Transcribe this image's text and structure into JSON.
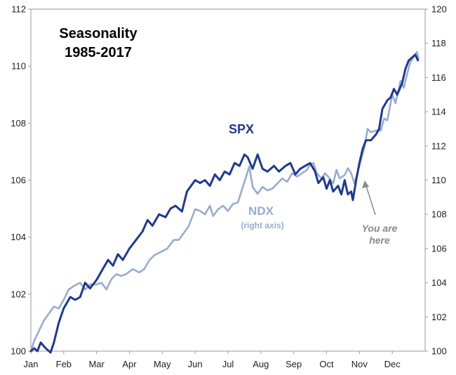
{
  "chart_data": {
    "type": "line",
    "title_lines": [
      "Seasonality",
      "1985-2017"
    ],
    "x_labels": [
      "Jan",
      "Feb",
      "Mar",
      "Apr",
      "May",
      "Jun",
      "Jul",
      "Aug",
      "Sep",
      "Oct",
      "Nov",
      "Dec"
    ],
    "left_axis": {
      "min": 100,
      "max": 112,
      "ticks": [
        "100",
        "102",
        "104",
        "106",
        "108",
        "110",
        "112"
      ]
    },
    "right_axis": {
      "min": 100,
      "max": 120,
      "ticks": [
        "100",
        "102",
        "104",
        "106",
        "108",
        "110",
        "112",
        "114",
        "116",
        "118",
        "120"
      ]
    },
    "series": [
      {
        "name": "SPX",
        "axis": "left",
        "color": "#1f3a8a",
        "label": "SPX",
        "points": [
          [
            0,
            100.0
          ],
          [
            0.1,
            100.1
          ],
          [
            0.2,
            100.0
          ],
          [
            0.3,
            100.3
          ],
          [
            0.45,
            100.1
          ],
          [
            0.6,
            99.95
          ],
          [
            0.7,
            100.3
          ],
          [
            0.85,
            101.0
          ],
          [
            1.0,
            101.5
          ],
          [
            1.2,
            101.9
          ],
          [
            1.35,
            101.8
          ],
          [
            1.5,
            101.9
          ],
          [
            1.65,
            102.4
          ],
          [
            1.8,
            102.2
          ],
          [
            2.0,
            102.5
          ],
          [
            2.2,
            102.9
          ],
          [
            2.35,
            103.2
          ],
          [
            2.5,
            103.0
          ],
          [
            2.65,
            103.4
          ],
          [
            2.8,
            103.2
          ],
          [
            3.0,
            103.6
          ],
          [
            3.2,
            103.9
          ],
          [
            3.4,
            104.2
          ],
          [
            3.55,
            104.6
          ],
          [
            3.7,
            104.4
          ],
          [
            3.9,
            104.8
          ],
          [
            4.1,
            104.7
          ],
          [
            4.25,
            105.0
          ],
          [
            4.4,
            105.1
          ],
          [
            4.6,
            104.9
          ],
          [
            4.75,
            105.6
          ],
          [
            5.0,
            106.0
          ],
          [
            5.15,
            105.9
          ],
          [
            5.3,
            106.0
          ],
          [
            5.45,
            105.8
          ],
          [
            5.6,
            106.2
          ],
          [
            5.75,
            106.0
          ],
          [
            5.9,
            106.3
          ],
          [
            6.05,
            106.2
          ],
          [
            6.2,
            106.6
          ],
          [
            6.35,
            106.5
          ],
          [
            6.5,
            106.9
          ],
          [
            6.6,
            106.8
          ],
          [
            6.75,
            106.4
          ],
          [
            6.9,
            106.9
          ],
          [
            7.05,
            106.4
          ],
          [
            7.2,
            106.3
          ],
          [
            7.4,
            106.5
          ],
          [
            7.55,
            106.3
          ],
          [
            7.75,
            106.5
          ],
          [
            7.9,
            106.6
          ],
          [
            8.05,
            106.2
          ],
          [
            8.2,
            106.4
          ],
          [
            8.35,
            106.5
          ],
          [
            8.5,
            106.6
          ],
          [
            8.65,
            106.3
          ],
          [
            8.75,
            105.9
          ],
          [
            8.9,
            106.1
          ],
          [
            9.0,
            105.7
          ],
          [
            9.1,
            106.0
          ],
          [
            9.2,
            105.6
          ],
          [
            9.35,
            105.8
          ],
          [
            9.45,
            105.5
          ],
          [
            9.55,
            106.0
          ],
          [
            9.65,
            105.5
          ],
          [
            9.75,
            105.6
          ],
          [
            9.8,
            105.3
          ],
          [
            9.9,
            106.0
          ],
          [
            10.0,
            106.6
          ],
          [
            10.1,
            107.1
          ],
          [
            10.2,
            107.4
          ],
          [
            10.35,
            107.4
          ],
          [
            10.5,
            107.6
          ],
          [
            10.6,
            107.8
          ],
          [
            10.7,
            108.5
          ],
          [
            10.85,
            108.8
          ],
          [
            10.95,
            108.9
          ],
          [
            11.05,
            109.2
          ],
          [
            11.15,
            109.0
          ],
          [
            11.3,
            109.4
          ],
          [
            11.4,
            109.9
          ],
          [
            11.5,
            110.2
          ],
          [
            11.6,
            110.3
          ],
          [
            11.7,
            110.4
          ],
          [
            11.78,
            110.2
          ]
        ]
      },
      {
        "name": "NDX",
        "axis": "right",
        "color": "#9aabcf",
        "label": "NDX",
        "sublabel": "(right axis)",
        "points": [
          [
            0,
            100.0
          ],
          [
            0.1,
            100.6
          ],
          [
            0.25,
            101.2
          ],
          [
            0.4,
            101.8
          ],
          [
            0.55,
            102.2
          ],
          [
            0.7,
            102.6
          ],
          [
            0.85,
            102.5
          ],
          [
            1.0,
            103.0
          ],
          [
            1.15,
            103.6
          ],
          [
            1.3,
            103.8
          ],
          [
            1.5,
            104.0
          ],
          [
            1.65,
            103.6
          ],
          [
            1.8,
            103.9
          ],
          [
            2.0,
            103.9
          ],
          [
            2.15,
            104.0
          ],
          [
            2.3,
            103.6
          ],
          [
            2.45,
            104.2
          ],
          [
            2.6,
            104.5
          ],
          [
            2.75,
            104.4
          ],
          [
            2.9,
            104.5
          ],
          [
            3.1,
            104.8
          ],
          [
            3.3,
            104.6
          ],
          [
            3.45,
            104.8
          ],
          [
            3.6,
            105.3
          ],
          [
            3.75,
            105.6
          ],
          [
            3.95,
            105.8
          ],
          [
            4.15,
            106.0
          ],
          [
            4.35,
            106.5
          ],
          [
            4.5,
            106.5
          ],
          [
            4.65,
            106.9
          ],
          [
            4.8,
            107.3
          ],
          [
            5.0,
            108.3
          ],
          [
            5.15,
            108.2
          ],
          [
            5.3,
            108.0
          ],
          [
            5.45,
            108.5
          ],
          [
            5.55,
            107.9
          ],
          [
            5.7,
            108.3
          ],
          [
            5.85,
            108.5
          ],
          [
            6.0,
            108.2
          ],
          [
            6.15,
            108.6
          ],
          [
            6.3,
            108.7
          ],
          [
            6.45,
            109.6
          ],
          [
            6.55,
            110.2
          ],
          [
            6.65,
            110.8
          ],
          [
            6.75,
            109.6
          ],
          [
            6.9,
            109.2
          ],
          [
            7.05,
            109.6
          ],
          [
            7.2,
            109.4
          ],
          [
            7.35,
            109.5
          ],
          [
            7.5,
            109.8
          ],
          [
            7.65,
            110.1
          ],
          [
            7.8,
            109.9
          ],
          [
            7.95,
            110.4
          ],
          [
            8.1,
            110.2
          ],
          [
            8.25,
            110.4
          ],
          [
            8.4,
            110.6
          ],
          [
            8.5,
            110.9
          ],
          [
            8.6,
            111.0
          ],
          [
            8.7,
            110.4
          ],
          [
            8.85,
            110.1
          ],
          [
            8.95,
            110.4
          ],
          [
            9.05,
            110.2
          ],
          [
            9.2,
            109.8
          ],
          [
            9.3,
            110.6
          ],
          [
            9.4,
            110.1
          ],
          [
            9.55,
            110.3
          ],
          [
            9.65,
            110.7
          ],
          [
            9.75,
            110.4
          ],
          [
            9.85,
            109.8
          ],
          [
            9.95,
            110.5
          ],
          [
            10.05,
            111.2
          ],
          [
            10.15,
            111.9
          ],
          [
            10.25,
            113.0
          ],
          [
            10.35,
            112.8
          ],
          [
            10.5,
            112.9
          ],
          [
            10.65,
            112.9
          ],
          [
            10.75,
            113.6
          ],
          [
            10.85,
            113.5
          ],
          [
            11.0,
            115.0
          ],
          [
            11.1,
            114.5
          ],
          [
            11.25,
            115.8
          ],
          [
            11.35,
            115.4
          ],
          [
            11.45,
            116.2
          ],
          [
            11.55,
            116.9
          ],
          [
            11.65,
            117.2
          ],
          [
            11.75,
            117.5
          ],
          [
            11.8,
            117.1
          ]
        ]
      }
    ],
    "annotation": {
      "lines": [
        "You are",
        "here"
      ]
    }
  }
}
